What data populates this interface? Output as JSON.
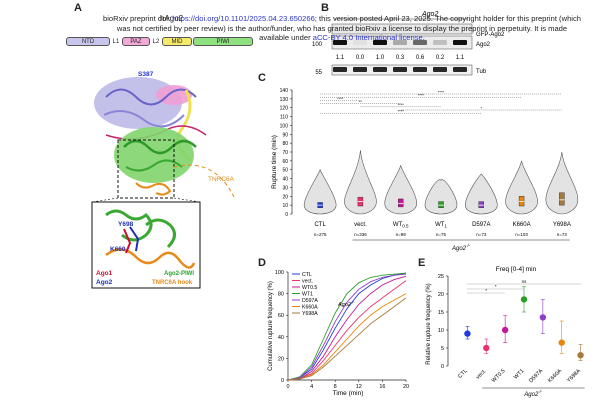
{
  "panels": {
    "a": "A",
    "b": "B",
    "c": "C",
    "d": "D",
    "e": "E"
  },
  "preprint": {
    "line1_a": "bioRxiv preprint doi: ",
    "line1_link": "https://doi.org/10.1101/2025.04.23.650266",
    "line1_b": "; this version posted April 23, 2025. The copyright holder for this preprint (which",
    "line2": "was not certified by peer review) is the author/funder, who has granted bioRxiv a license to display the preprint in perpetuity. It is made",
    "line3_a": "available under ",
    "line3_link": "aCC-BY 4.0 International license",
    "line3_b": "."
  },
  "panel_a": {
    "title": "hAgo2",
    "domains": [
      "NTD",
      "L1",
      "PAZ",
      "L2",
      "MID",
      "PIWI"
    ],
    "domain_colors": [
      "#c9c6ee",
      "#ffffff",
      "#f3a9d8",
      "#ffffff",
      "#f5ea6a",
      "#8fe07f"
    ],
    "labels": {
      "s387": "S387",
      "tnrc6a": "TNRC6A",
      "y698": "Y698",
      "k660": "K660",
      "ago1": "Ago1",
      "ago2": "Ago2",
      "ago2piwi": "Ago2-PIWI",
      "hook": "TNRC6A hook"
    }
  },
  "panel_b": {
    "header": "Ago2",
    "marker_100": "100",
    "marker_55": "55",
    "band_gfp": "GFP-Ago2",
    "band_ago2": "Ago2",
    "band_tub": "Tub",
    "quant": [
      "1.1",
      "0.0",
      "1.0",
      "0.3",
      "0.6",
      "0.2",
      "1.1"
    ]
  },
  "chart_data": [
    {
      "type": "violin",
      "panel": "C",
      "ylabel": "Rupture time (min)",
      "ylim": [
        0,
        140
      ],
      "yticks": [
        "0",
        "10",
        "20",
        "30",
        "40",
        "50",
        "60",
        "70",
        "80",
        "90",
        "100",
        "110",
        "120",
        "130",
        "140"
      ],
      "categories": [
        "CTL",
        "vect.",
        "WT0.5",
        "WT1",
        "D597A",
        "K660A",
        "Y698A"
      ],
      "category_labels": [
        {
          "base": "CTL",
          "sub": ""
        },
        {
          "base": "vect.",
          "sub": ""
        },
        {
          "base": "WT",
          "sub": "0.5"
        },
        {
          "base": "WT",
          "sub": "1"
        },
        {
          "base": "D597A",
          "sub": ""
        },
        {
          "base": "K660A",
          "sub": ""
        },
        {
          "base": "Y698A",
          "sub": ""
        }
      ],
      "n": [
        "n=275",
        "n=336",
        "n=99",
        "n=75",
        "n=73",
        "n=103",
        "n=73"
      ],
      "group_label": "Ago2",
      "group_label_sup": "-/-",
      "medians": [
        10,
        14,
        12,
        10,
        10,
        14,
        16
      ],
      "q1": [
        7,
        9,
        8,
        7,
        7,
        9,
        10
      ],
      "q3": [
        13,
        19,
        17,
        14,
        14,
        20,
        24
      ],
      "max": [
        50,
        72,
        55,
        38,
        45,
        60,
        70
      ],
      "colors": [
        "#1f3bdc",
        "#e8336e",
        "#c2189c",
        "#2aa02a",
        "#8e3ec8",
        "#e8860a",
        "#a77a3c"
      ],
      "significance": [
        "****",
        "****",
        "****",
        "**",
        "****",
        "*",
        "****"
      ]
    },
    {
      "type": "line",
      "panel": "D",
      "xlabel": "Time (min)",
      "ylabel": "Cumulative rupture frequency (%)",
      "xlim": [
        0,
        20
      ],
      "ylim": [
        0,
        100
      ],
      "xticks": [
        "0",
        "4",
        "8",
        "12",
        "16",
        "20"
      ],
      "yticks": [
        "0",
        "20",
        "40",
        "60",
        "80",
        "100"
      ],
      "legend_title": "Ago2",
      "legend_title_sup": "-/-",
      "series": [
        {
          "name": "CTL",
          "color": "#1f3bdc",
          "x": [
            0,
            2,
            4,
            6,
            8,
            10,
            12,
            14,
            16,
            18,
            20
          ],
          "y": [
            0,
            2,
            10,
            28,
            48,
            66,
            80,
            88,
            94,
            97,
            99
          ]
        },
        {
          "name": "vect.",
          "color": "#e8336e",
          "x": [
            0,
            2,
            4,
            6,
            8,
            10,
            12,
            14,
            16,
            18,
            20
          ],
          "y": [
            0,
            1,
            6,
            18,
            32,
            46,
            58,
            68,
            76,
            84,
            92
          ]
        },
        {
          "name": "WT0.5",
          "color": "#c2189c",
          "x": [
            0,
            2,
            4,
            6,
            8,
            10,
            12,
            14,
            16,
            18,
            20
          ],
          "y": [
            0,
            1,
            8,
            22,
            40,
            56,
            70,
            80,
            88,
            93,
            96
          ]
        },
        {
          "name": "WT1",
          "color": "#2aa02a",
          "x": [
            0,
            2,
            4,
            6,
            8,
            10,
            12,
            14,
            16,
            18,
            20
          ],
          "y": [
            0,
            3,
            14,
            38,
            62,
            80,
            90,
            95,
            97,
            98,
            99
          ]
        },
        {
          "name": "D597A",
          "color": "#8e3ec8",
          "x": [
            0,
            2,
            4,
            6,
            8,
            10,
            12,
            14,
            16,
            18,
            20
          ],
          "y": [
            0,
            2,
            12,
            32,
            54,
            72,
            84,
            91,
            95,
            97,
            98
          ]
        },
        {
          "name": "K660A",
          "color": "#e8860a",
          "x": [
            0,
            2,
            4,
            6,
            8,
            10,
            12,
            14,
            16,
            18,
            20
          ],
          "y": [
            0,
            1,
            5,
            14,
            26,
            38,
            50,
            60,
            68,
            74,
            80
          ]
        },
        {
          "name": "Y698A",
          "color": "#a77a3c",
          "x": [
            0,
            2,
            4,
            6,
            8,
            10,
            12,
            14,
            16,
            18,
            20
          ],
          "y": [
            0,
            1,
            4,
            12,
            22,
            32,
            42,
            52,
            60,
            68,
            76
          ]
        }
      ]
    },
    {
      "type": "scatter",
      "panel": "E",
      "title": "Freq [0-4] min",
      "ylabel": "Relative rupture frequency (%)",
      "ylim": [
        0,
        25
      ],
      "yticks": [
        "0",
        "5",
        "10",
        "15",
        "20",
        "25"
      ],
      "categories": [
        "CTL",
        "vect.",
        "WT0.5",
        "WT1",
        "D597A",
        "K660A",
        "Y698A"
      ],
      "values": [
        9,
        5,
        10,
        18.5,
        13.5,
        6.5,
        3
      ],
      "err_low": [
        7.5,
        3.5,
        6.5,
        15,
        9,
        3.5,
        1.5
      ],
      "err_high": [
        11,
        7.5,
        14,
        22,
        18.5,
        12.5,
        6
      ],
      "colors": [
        "#1f3bdc",
        "#e8336e",
        "#c2189c",
        "#2aa02a",
        "#8e3ec8",
        "#e8860a",
        "#a77a3c"
      ],
      "significance": [
        "ns",
        "*",
        "*"
      ],
      "group_label": "Ago2",
      "group_label_sup": "-/-"
    }
  ]
}
